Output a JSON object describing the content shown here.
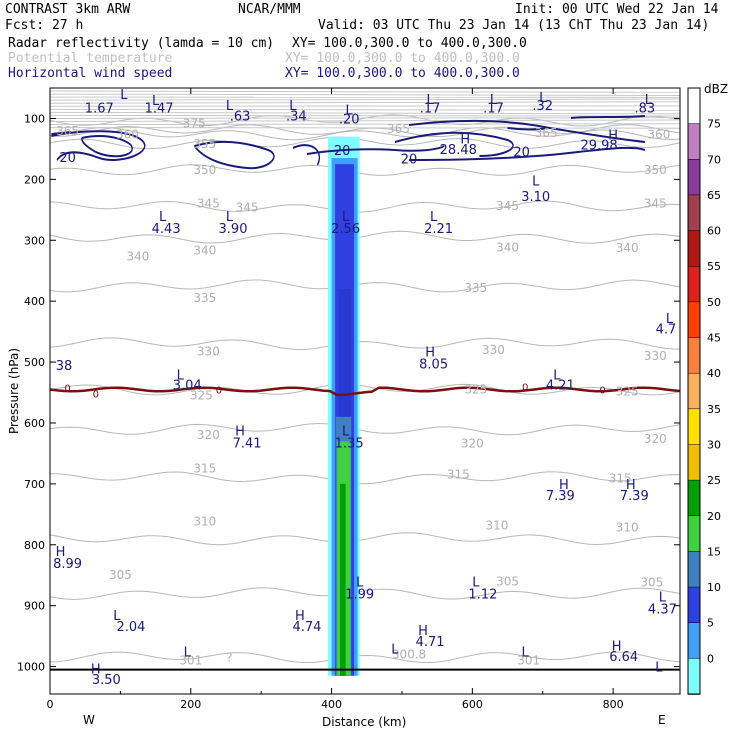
{
  "header": {
    "model": "CONTRAST  3km ARW",
    "org": "NCAR/MMM",
    "init": "Init: 00 UTC Wed 22 Jan 14",
    "fcst": "Fcst:   27 h",
    "valid": "Valid: 03 UTC Thu 23 Jan 14 (13 ChT Thu 23 Jan 14)",
    "field1": "Radar reflectivity (lamda = 10 cm)",
    "field2": "Potential temperature",
    "field3": "Horizontal wind speed",
    "xy": "XY= 100.0,300.0 to 400.0,300.0",
    "colors": {
      "field1": "#000000",
      "field2": "#c0c0c0",
      "field3": "#1a1a7a"
    }
  },
  "chart_data": {
    "type": "contour-cross-section",
    "ylabel": "Pressure (hPa)",
    "xlabel": "Distance (km)",
    "xlim": [
      0,
      895
    ],
    "ylim": [
      1045,
      50
    ],
    "x_ticks": [
      "0",
      "200",
      "400",
      "600",
      "800"
    ],
    "y_ticks": [
      "100",
      "200",
      "300",
      "400",
      "500",
      "600",
      "700",
      "800",
      "900",
      "1000"
    ],
    "direction_left": "W",
    "direction_right": "E",
    "colorbar": {
      "title": "dBZ",
      "levels": [
        "75",
        "70",
        "65",
        "60",
        "55",
        "50",
        "45",
        "40",
        "35",
        "30",
        "25",
        "20",
        "15",
        "10",
        "5",
        "0"
      ],
      "colors": [
        "#ffffff",
        "#c080c0",
        "#8a3a9a",
        "#a04050",
        "#b01818",
        "#e02020",
        "#ff4000",
        "#ff8040",
        "#ffb060",
        "#ffe000",
        "#f0c000",
        "#00a000",
        "#40d040",
        "#4080c0",
        "#3040e0",
        "#40a0ff",
        "#80ffff"
      ]
    },
    "theta_contours": [
      {
        "value": "375",
        "p": 103
      },
      {
        "value": "365",
        "p": 120
      },
      {
        "value": "360",
        "p": 125
      },
      {
        "value": "355",
        "p": 140
      },
      {
        "value": "350",
        "p": 185
      },
      {
        "value": "345",
        "p": 245
      },
      {
        "value": "340",
        "p": 295
      },
      {
        "value": "335",
        "p": 375
      },
      {
        "value": "330",
        "p": 470
      },
      {
        "value": "325",
        "p": 545
      },
      {
        "value": "320",
        "p": 610
      },
      {
        "value": "315",
        "p": 690
      },
      {
        "value": "310",
        "p": 790
      },
      {
        "value": "305",
        "p": 880
      },
      {
        "value": "301",
        "p": 985
      }
    ],
    "theta_labels": [
      {
        "text": "375",
        "x": 205,
        "p": 108
      },
      {
        "text": "365",
        "x": 25,
        "p": 121
      },
      {
        "text": "360",
        "x": 110,
        "p": 126
      },
      {
        "text": "365",
        "x": 495,
        "p": 117
      },
      {
        "text": "365",
        "x": 705,
        "p": 124
      },
      {
        "text": "360",
        "x": 865,
        "p": 126
      },
      {
        "text": "355",
        "x": 220,
        "p": 142
      },
      {
        "text": "350",
        "x": 220,
        "p": 185
      },
      {
        "text": "350",
        "x": 860,
        "p": 185
      },
      {
        "text": "345",
        "x": 225,
        "p": 240
      },
      {
        "text": "345",
        "x": 280,
        "p": 246
      },
      {
        "text": "345",
        "x": 650,
        "p": 244
      },
      {
        "text": "345",
        "x": 860,
        "p": 240
      },
      {
        "text": "340",
        "x": 125,
        "p": 327
      },
      {
        "text": "340",
        "x": 220,
        "p": 317
      },
      {
        "text": "340",
        "x": 650,
        "p": 312
      },
      {
        "text": "340",
        "x": 820,
        "p": 313
      },
      {
        "text": "335",
        "x": 220,
        "p": 395
      },
      {
        "text": "335",
        "x": 605,
        "p": 378
      },
      {
        "text": "330",
        "x": 225,
        "p": 483
      },
      {
        "text": "330",
        "x": 630,
        "p": 480
      },
      {
        "text": "330",
        "x": 860,
        "p": 490
      },
      {
        "text": "325",
        "x": 215,
        "p": 555
      },
      {
        "text": "325",
        "x": 605,
        "p": 545
      },
      {
        "text": "325",
        "x": 820,
        "p": 548
      },
      {
        "text": "320",
        "x": 225,
        "p": 620
      },
      {
        "text": "320",
        "x": 600,
        "p": 634
      },
      {
        "text": "320",
        "x": 860,
        "p": 626
      },
      {
        "text": "315",
        "x": 220,
        "p": 675
      },
      {
        "text": "315",
        "x": 580,
        "p": 685
      },
      {
        "text": "315",
        "x": 810,
        "p": 691
      },
      {
        "text": "310",
        "x": 220,
        "p": 762
      },
      {
        "text": "310",
        "x": 635,
        "p": 768
      },
      {
        "text": "310",
        "x": 820,
        "p": 772
      },
      {
        "text": "305",
        "x": 100,
        "p": 850
      },
      {
        "text": "305",
        "x": 650,
        "p": 860
      },
      {
        "text": "305",
        "x": 855,
        "p": 862
      },
      {
        "text": "301",
        "x": 200,
        "p": 990
      },
      {
        "text": "301",
        "x": 680,
        "p": 990
      },
      {
        "text": "?",
        "x": 255,
        "p": 985
      },
      {
        "text": "300.8",
        "x": 510,
        "p": 980
      }
    ],
    "zero_line_labels": [
      {
        "text": "0",
        "x": 25,
        "p": 542
      },
      {
        "text": "0",
        "x": 65,
        "p": 552
      },
      {
        "text": "0",
        "x": 240,
        "p": 545
      },
      {
        "text": "0",
        "x": 675,
        "p": 540
      },
      {
        "text": "0",
        "x": 785,
        "p": 545
      }
    ],
    "wind_labels": [
      {
        "text": "1.67",
        "x": 70,
        "p": 82
      },
      {
        "text": "1.47",
        "x": 155,
        "p": 82
      },
      {
        "text": ".63",
        "x": 270,
        "p": 95
      },
      {
        "text": ".34",
        "x": 350,
        "p": 95
      },
      {
        "text": ".20",
        "x": 425,
        "p": 100
      },
      {
        "text": ".17",
        "x": 540,
        "p": 82
      },
      {
        "text": ".17",
        "x": 630,
        "p": 82
      },
      {
        "text": ".32",
        "x": 700,
        "p": 78
      },
      {
        "text": ".83",
        "x": 845,
        "p": 82
      },
      {
        "text": "20",
        "x": 25,
        "p": 163
      },
      {
        "text": "28.48",
        "x": 580,
        "p": 150
      },
      {
        "text": "20",
        "x": 415,
        "p": 152
      },
      {
        "text": "20",
        "x": 510,
        "p": 166
      },
      {
        "text": "20",
        "x": 670,
        "p": 154
      },
      {
        "text": "29.98",
        "x": 780,
        "p": 143
      },
      {
        "text": "3.10",
        "x": 690,
        "p": 227
      },
      {
        "text": "4.43",
        "x": 165,
        "p": 280
      },
      {
        "text": "3.90",
        "x": 260,
        "p": 280
      },
      {
        "text": "2.56",
        "x": 420,
        "p": 280
      },
      {
        "text": "2.21",
        "x": 552,
        "p": 280
      },
      {
        "text": "4.7",
        "x": 885,
        "p": 445
      },
      {
        "text": "38",
        "x": 15,
        "p": 505
      },
      {
        "text": "8.05",
        "x": 545,
        "p": 502
      },
      {
        "text": "3.04",
        "x": 195,
        "p": 537
      },
      {
        "text": "4.21",
        "x": 725,
        "p": 537
      },
      {
        "text": "7.41",
        "x": 280,
        "p": 632
      },
      {
        "text": "1.35",
        "x": 425,
        "p": 632
      },
      {
        "text": "7.39",
        "x": 725,
        "p": 718
      },
      {
        "text": "7.39",
        "x": 830,
        "p": 718
      },
      {
        "text": "8.99",
        "x": 25,
        "p": 830
      },
      {
        "text": "1.99",
        "x": 440,
        "p": 880
      },
      {
        "text": "1.12",
        "x": 615,
        "p": 880
      },
      {
        "text": "4.37",
        "x": 870,
        "p": 905
      },
      {
        "text": "2.04",
        "x": 115,
        "p": 933
      },
      {
        "text": "4.74",
        "x": 365,
        "p": 933
      },
      {
        "text": "4.71",
        "x": 540,
        "p": 958
      },
      {
        "text": "6.64",
        "x": 815,
        "p": 983
      },
      {
        "text": "3.50",
        "x": 80,
        "p": 1020
      }
    ],
    "extrema_markers": [
      {
        "text": "L",
        "x": 105,
        "p": 60
      },
      {
        "text": "L",
        "x": 150,
        "p": 70
      },
      {
        "text": "L",
        "x": 255,
        "p": 78
      },
      {
        "text": "L",
        "x": 345,
        "p": 78
      },
      {
        "text": "L",
        "x": 425,
        "p": 85
      },
      {
        "text": "L",
        "x": 540,
        "p": 68
      },
      {
        "text": "L",
        "x": 630,
        "p": 68
      },
      {
        "text": "L",
        "x": 700,
        "p": 65
      },
      {
        "text": "L",
        "x": 850,
        "p": 68
      },
      {
        "text": "H",
        "x": 590,
        "p": 133
      },
      {
        "text": "H",
        "x": 800,
        "p": 126
      },
      {
        "text": "L",
        "x": 690,
        "p": 202
      },
      {
        "text": "L",
        "x": 160,
        "p": 260
      },
      {
        "text": "L",
        "x": 255,
        "p": 260
      },
      {
        "text": "L",
        "x": 420,
        "p": 260
      },
      {
        "text": "L",
        "x": 545,
        "p": 260
      },
      {
        "text": "L",
        "x": 880,
        "p": 428
      },
      {
        "text": "H",
        "x": 540,
        "p": 483
      },
      {
        "text": "L",
        "x": 185,
        "p": 520
      },
      {
        "text": "L",
        "x": 720,
        "p": 520
      },
      {
        "text": "H",
        "x": 270,
        "p": 612
      },
      {
        "text": "L",
        "x": 420,
        "p": 612
      },
      {
        "text": "H",
        "x": 730,
        "p": 700
      },
      {
        "text": "H",
        "x": 825,
        "p": 700
      },
      {
        "text": "H",
        "x": 15,
        "p": 810
      },
      {
        "text": "L",
        "x": 440,
        "p": 860
      },
      {
        "text": "L",
        "x": 605,
        "p": 860
      },
      {
        "text": "L",
        "x": 870,
        "p": 885
      },
      {
        "text": "L",
        "x": 95,
        "p": 915
      },
      {
        "text": "H",
        "x": 355,
        "p": 915
      },
      {
        "text": "H",
        "x": 530,
        "p": 940
      },
      {
        "text": "H",
        "x": 805,
        "p": 965
      },
      {
        "text": "L",
        "x": 490,
        "p": 970
      },
      {
        "text": "L",
        "x": 195,
        "p": 975
      },
      {
        "text": "L",
        "x": 675,
        "p": 975
      },
      {
        "text": "H",
        "x": 65,
        "p": 1003
      },
      {
        "text": "L",
        "x": 865,
        "p": 1000
      }
    ]
  }
}
